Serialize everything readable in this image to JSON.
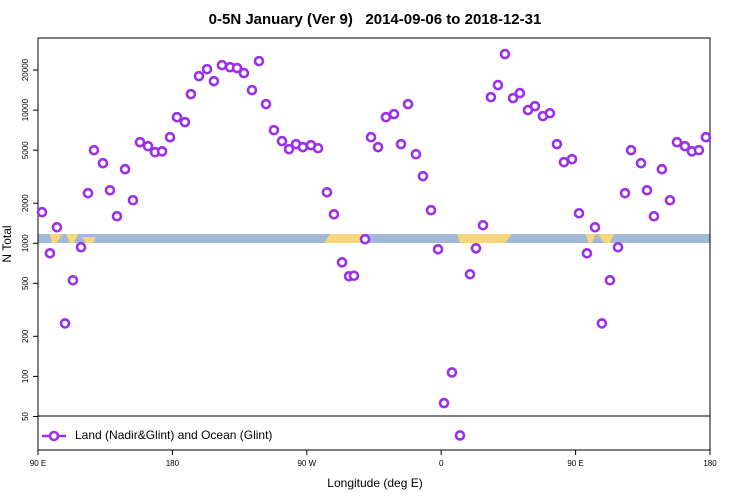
{
  "chart_data": {
    "type": "scatter",
    "title": "0-5N January (Ver 9)   2014-09-06 to 2018-12-31",
    "xlabel": "Longitude (deg E)",
    "ylabel": "N Total",
    "log_y": true,
    "legend": "bottom-left",
    "xlim": [
      90,
      540
    ],
    "xticks": [
      {
        "value": 90,
        "label": "90 E"
      },
      180,
      {
        "value": 270,
        "label": "90 W"
      },
      {
        "value": 360,
        "label": "0"
      },
      {
        "value": 450,
        "label": "90 E"
      },
      {
        "value": 540,
        "label": "180"
      }
    ],
    "ylim": [
      28,
      34800
    ],
    "yticks": [
      50,
      100,
      200,
      500,
      1000,
      2000,
      5000,
      10000,
      20000
    ],
    "series": [
      {
        "name": "Land (Nadir&Glint) and Ocean (Glint)",
        "color": "#9b30e8",
        "x": [
          92.7,
          98.0,
          102.7,
          108.1,
          113.4,
          118.8,
          123.5,
          127.5,
          133.5,
          138.2,
          142.9,
          148.3,
          153.6,
          158.3,
          163.7,
          168.4,
          173.1,
          178.4,
          183.1,
          188.4,
          192.4,
          197.8,
          203.2,
          207.8,
          213.2,
          218.6,
          223.3,
          227.9,
          233.3,
          238.0,
          242.7,
          248.0,
          253.4,
          258.1,
          262.8,
          267.4,
          272.8,
          277.5,
          283.5,
          288.2,
          293.6,
          298.3,
          301.6,
          309.0,
          313.0,
          317.7,
          323.0,
          328.4,
          333.1,
          337.8,
          343.1,
          347.8,
          353.2,
          357.9,
          361.9,
          367.2,
          372.6,
          379.3,
          383.3,
          388.0,
          393.3,
          398.0,
          402.7,
          408.1,
          412.7,
          418.1,
          422.8,
          428.1,
          432.8,
          437.5,
          442.2,
          447.6,
          452.3,
          457.6,
          463.0,
          467.6,
          473.0,
          478.4,
          483.1,
          487.1,
          493.8,
          497.8,
          502.5,
          507.8,
          513.2,
          517.9,
          523.2,
          527.9,
          532.6,
          537.3
        ],
        "values": [
          1710,
          841,
          1318,
          250,
          527,
          933,
          2377,
          5000,
          3990,
          2500,
          1595,
          3597,
          2104,
          5740,
          5360,
          4830,
          4900,
          6260,
          8850,
          8120,
          13180,
          17990,
          20300,
          16500,
          21770,
          21000,
          20700,
          18970,
          14130,
          23330,
          11090,
          7070,
          5850,
          5090,
          5550,
          5270,
          5450,
          5170,
          2415,
          1650,
          719,
          565,
          570,
          1072,
          6260,
          5270,
          8850,
          9330,
          5550,
          11090,
          4665,
          3190,
          1770,
          901,
          63,
          107,
          36,
          585,
          916,
          1365,
          12510,
          15420,
          26350,
          12300,
          13420,
          10000,
          10710,
          9010,
          9470,
          5550,
          4065,
          4280,
          1680,
          841,
          1318,
          250,
          527,
          933,
          2377,
          5000,
          3990,
          2500,
          1595,
          3597,
          2104,
          5740,
          5360,
          4900,
          5000,
          6260
        ]
      }
    ]
  }
}
